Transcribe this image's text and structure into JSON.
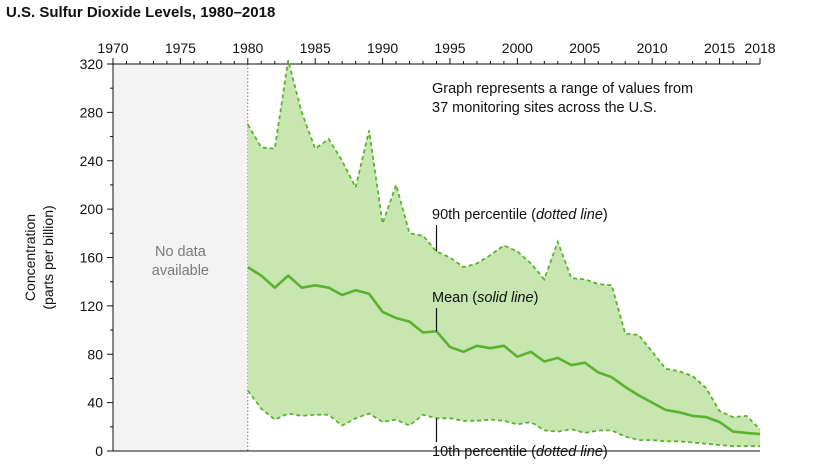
{
  "chart_data": {
    "type": "area",
    "title": "U.S. Sulfur Dioxide Levels, 1980–2018",
    "ylabel_line1": "Concentration",
    "ylabel_line2": "(parts per billion)",
    "xlim": [
      1970,
      2018
    ],
    "ylim": [
      0,
      320
    ],
    "x_ticks": [
      1970,
      1975,
      1980,
      1985,
      1990,
      1995,
      2000,
      2005,
      2010,
      2015,
      2018
    ],
    "y_ticks": [
      0,
      40,
      80,
      120,
      160,
      200,
      240,
      280,
      320
    ],
    "no_data_text_line1": "No data",
    "no_data_text_line2": "available",
    "note_line1": "Graph represents a range of values from",
    "note_line2": "37 monitoring sites across the U.S.",
    "labels": {
      "p90_prefix": "90th percentile (",
      "p90_em": "dotted line",
      "p90_suffix": ")",
      "mean_prefix": "Mean (",
      "mean_em": "solid line",
      "mean_suffix": ")",
      "p10_prefix": "10th percentile (",
      "p10_em": "dotted line",
      "p10_suffix": ")"
    },
    "colors": {
      "band_fill": "#c8e6b0",
      "line": "#5ab22e",
      "no_data_fill": "#f3f3f3"
    },
    "x": [
      1980,
      1981,
      1982,
      1983,
      1984,
      1985,
      1986,
      1987,
      1988,
      1989,
      1990,
      1991,
      1992,
      1993,
      1994,
      1995,
      1996,
      1997,
      1998,
      1999,
      2000,
      2001,
      2002,
      2003,
      2004,
      2005,
      2006,
      2007,
      2008,
      2009,
      2010,
      2011,
      2012,
      2013,
      2014,
      2015,
      2016,
      2017,
      2018
    ],
    "series": [
      {
        "name": "90th percentile",
        "values": [
          270,
          251,
          250,
          323,
          280,
          250,
          258,
          240,
          218,
          265,
          188,
          220,
          180,
          178,
          165,
          160,
          152,
          155,
          162,
          170,
          165,
          155,
          142,
          173,
          143,
          142,
          138,
          137,
          97,
          96,
          82,
          68,
          66,
          62,
          52,
          33,
          28,
          29,
          18
        ]
      },
      {
        "name": "Mean",
        "values": [
          152,
          145,
          135,
          145,
          135,
          137,
          135,
          129,
          133,
          130,
          115,
          110,
          107,
          98,
          99,
          86,
          82,
          87,
          85,
          87,
          78,
          82,
          74,
          77,
          71,
          73,
          65,
          61,
          53,
          46,
          40,
          34,
          32,
          29,
          28,
          24,
          16,
          15,
          14
        ]
      },
      {
        "name": "10th percentile",
        "values": [
          50,
          35,
          26,
          31,
          29,
          30,
          30,
          21,
          27,
          31,
          24,
          26,
          21,
          30,
          27,
          27,
          25,
          25,
          26,
          25,
          22,
          24,
          17,
          16,
          18,
          15,
          17,
          17,
          12,
          9,
          9,
          8,
          8,
          7,
          6,
          5,
          4,
          4,
          4
        ]
      }
    ]
  }
}
